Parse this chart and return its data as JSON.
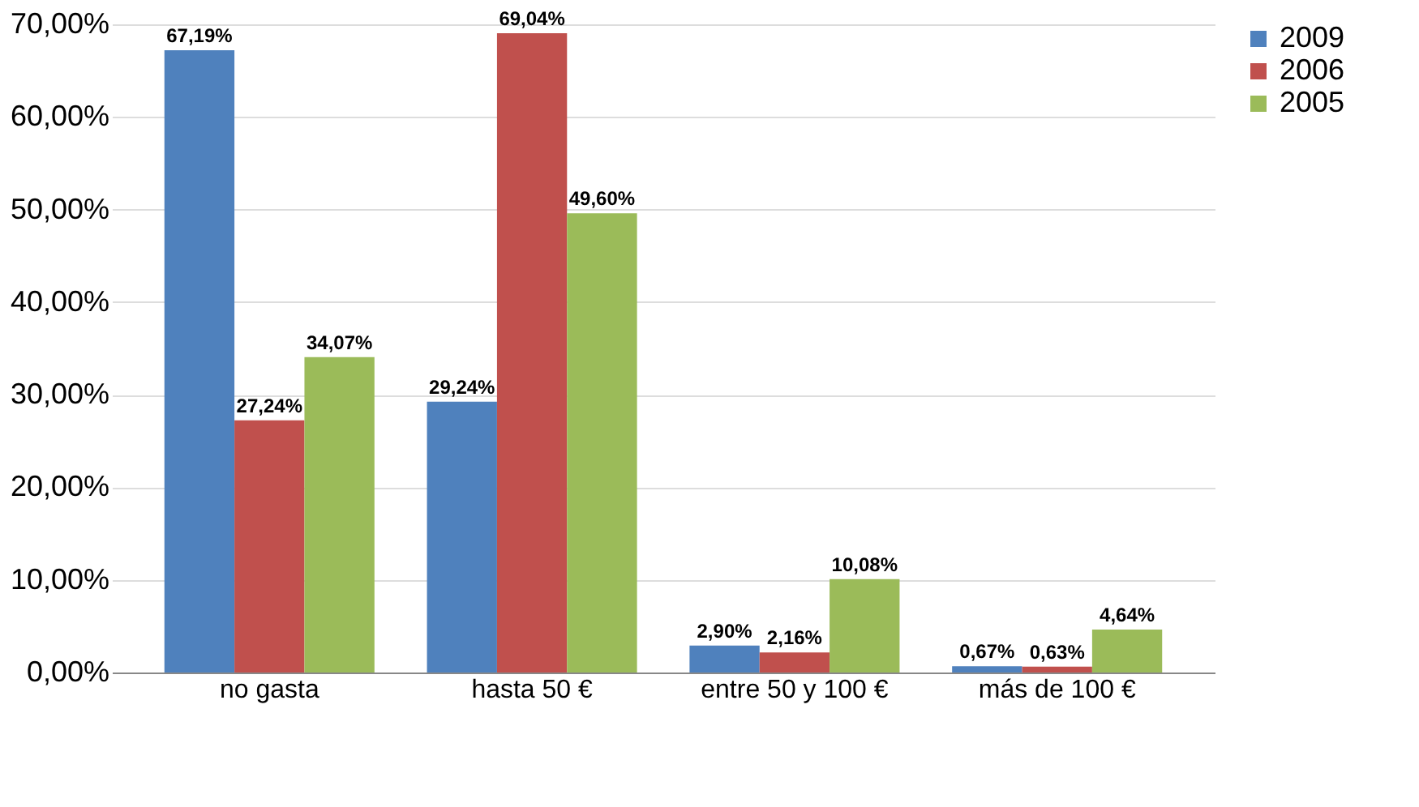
{
  "chart_data": {
    "type": "bar",
    "categories": [
      "no gasta",
      "hasta 50 €",
      "entre 50 y 100 €",
      "más de 100 €"
    ],
    "series": [
      {
        "name": "2009",
        "color": "#4f81bd",
        "values": [
          67.19,
          29.24,
          2.9,
          0.67
        ],
        "value_labels": [
          "67,19%",
          "29,24%",
          "2,90%",
          "0,67%"
        ]
      },
      {
        "name": "2006",
        "color": "#c0504d",
        "values": [
          27.24,
          69.04,
          2.16,
          0.63
        ],
        "value_labels": [
          "27,24%",
          "69,04%",
          "2,16%",
          "0,63%"
        ]
      },
      {
        "name": "2005",
        "color": "#9bbb59",
        "values": [
          34.07,
          49.6,
          10.08,
          4.64
        ],
        "value_labels": [
          "34,07%",
          "49,60%",
          "10,08%",
          "4,64%"
        ]
      }
    ],
    "ylim": [
      0,
      70
    ],
    "yticks": [
      {
        "value": 0,
        "label": "0,00%"
      },
      {
        "value": 10,
        "label": "10,00%"
      },
      {
        "value": 20,
        "label": "20,00%"
      },
      {
        "value": 30,
        "label": "30,00%"
      },
      {
        "value": 40,
        "label": "40,00%"
      },
      {
        "value": 50,
        "label": "50,00%"
      },
      {
        "value": 60,
        "label": "60,00%"
      },
      {
        "value": 70,
        "label": "70,00%"
      }
    ],
    "grid": "y",
    "legend": "right"
  }
}
